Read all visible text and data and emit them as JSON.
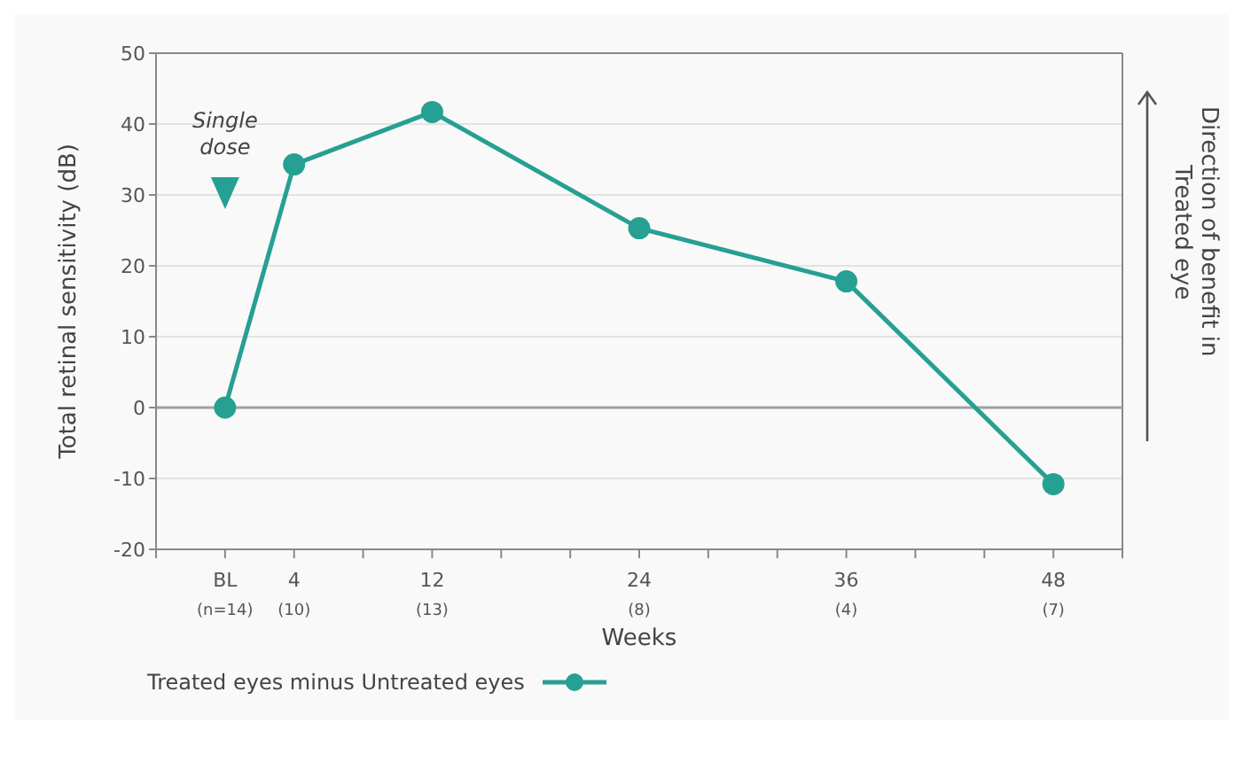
{
  "chart_data": {
    "type": "line",
    "xlabel": "Weeks",
    "ylabel": "Total retinal sensitivity (dB)",
    "x": [
      0,
      4,
      12,
      24,
      36,
      48
    ],
    "series": [
      {
        "name": "Treated eyes minus Untreated eyes",
        "color": "#26a092",
        "values": [
          0,
          34.3,
          41.7,
          25.3,
          17.8,
          -10.8
        ]
      }
    ],
    "xlim": [
      -4,
      52
    ],
    "xticks": [
      {
        "value": -4,
        "label": null
      },
      {
        "value": 0,
        "label": "BL"
      },
      4,
      {
        "value": 8,
        "label": null
      },
      12,
      {
        "value": 16,
        "label": null
      },
      {
        "value": 20,
        "label": null
      },
      24,
      {
        "value": 28,
        "label": null
      },
      {
        "value": 32,
        "label": null
      },
      36,
      {
        "value": 40,
        "label": null
      },
      {
        "value": 44,
        "label": null
      },
      48,
      {
        "value": 52,
        "label": null
      }
    ],
    "ylim": [
      -20,
      50
    ],
    "yticks": [
      -20,
      -10,
      0,
      10,
      20,
      30,
      40,
      50
    ],
    "grid": "y",
    "marker": "circle",
    "line_style": "solid",
    "legend": "bottom",
    "ref_lines": [
      {
        "axis": "y",
        "value": 0,
        "color": "#a0a0a0"
      }
    ],
    "annotations": [
      "Single\ndose",
      "Direction of benefit in\nTreated eye",
      "(n=14)",
      "(10)",
      "(13)",
      "(8)",
      "(4)",
      "(7)"
    ]
  }
}
